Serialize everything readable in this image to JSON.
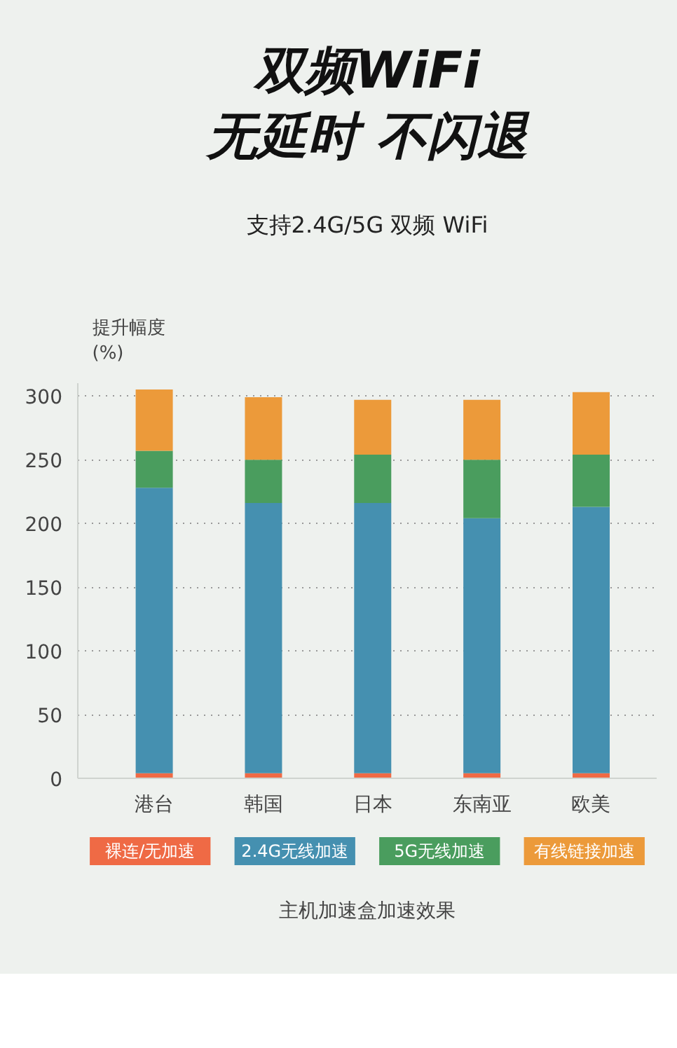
{
  "chart_data": {
    "type": "bar",
    "stacked": true,
    "title": "双频WiFi\n无延时 不闪退",
    "subtitle": "支持2.4G/5G 双频 WiFi",
    "ylabel": "提升幅度\n(%)",
    "categories": [
      "港台",
      "韩国",
      "日本",
      "东南亚",
      "欧美"
    ],
    "series": [
      {
        "name": "裸连/无加速",
        "color": "#ef6a45",
        "values": [
          4,
          4,
          4,
          4,
          4
        ]
      },
      {
        "name": "2.4G无线加速",
        "color": "#4590b0",
        "values": [
          224,
          212,
          212,
          200,
          209
        ]
      },
      {
        "name": "5G无线加速",
        "color": "#4a9d5e",
        "values": [
          29,
          34,
          38,
          46,
          41
        ]
      },
      {
        "name": "有线链接加速",
        "color": "#ec9a3a",
        "values": [
          48,
          49,
          43,
          47,
          49
        ]
      }
    ],
    "ylim": [
      0,
      310
    ],
    "yticks": [
      0,
      50,
      100,
      150,
      200,
      250,
      300
    ],
    "grid": "y",
    "legend": "bottom",
    "annotations": [
      "主机加速盒加速效果"
    ]
  }
}
